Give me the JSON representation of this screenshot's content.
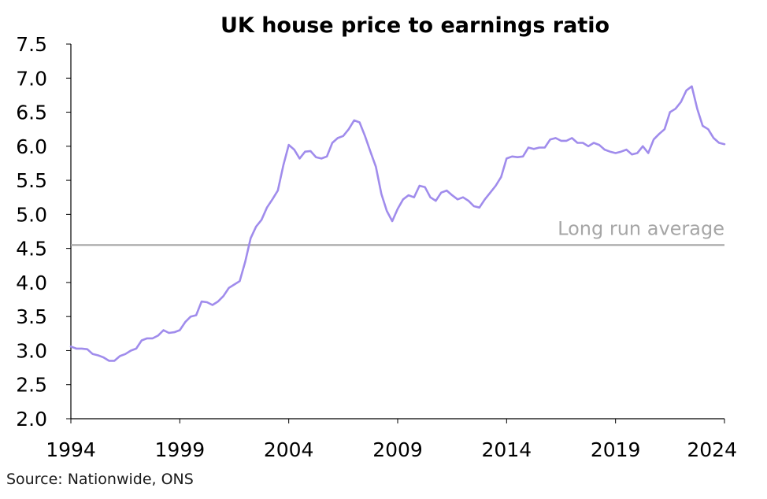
{
  "colors": {
    "title": "#0d1a4a",
    "line": "#a08cec",
    "average": "#a6a6a6",
    "axis": "#000000",
    "text": "#000000"
  },
  "chart_data": {
    "type": "line",
    "title": "UK house price to earnings ratio",
    "xlabel": "",
    "ylabel": "",
    "xlim": [
      1994,
      2024
    ],
    "ylim": [
      2.0,
      7.5
    ],
    "x_ticks": [
      1994,
      1999,
      2004,
      2009,
      2014,
      2019,
      2024
    ],
    "x_tick_labels": [
      "1994",
      "1999",
      "2004",
      "2009",
      "2014",
      "2019",
      "2024"
    ],
    "y_ticks": [
      2.0,
      2.5,
      3.0,
      3.5,
      4.0,
      4.5,
      5.0,
      5.5,
      6.0,
      6.5,
      7.0,
      7.5
    ],
    "y_tick_labels": [
      "2.0",
      "2.5",
      "3.0",
      "3.5",
      "4.0",
      "4.5",
      "5.0",
      "5.5",
      "6.0",
      "6.5",
      "7.0",
      "7.5"
    ],
    "grid": false,
    "legend": "none",
    "series": [
      {
        "x": [
          1994.0,
          1994.25,
          1994.5,
          1994.75,
          1995.0,
          1995.25,
          1995.5,
          1995.75,
          1996.0,
          1996.25,
          1996.5,
          1996.75,
          1997.0,
          1997.25,
          1997.5,
          1997.75,
          1998.0,
          1998.25,
          1998.5,
          1998.75,
          1999.0,
          1999.25,
          1999.5,
          1999.75,
          2000.0,
          2000.25,
          2000.5,
          2000.75,
          2001.0,
          2001.25,
          2001.5,
          2001.75,
          2002.0,
          2002.25,
          2002.5,
          2002.75,
          2003.0,
          2003.25,
          2003.5,
          2003.75,
          2004.0,
          2004.25,
          2004.5,
          2004.75,
          2005.0,
          2005.25,
          2005.5,
          2005.75,
          2006.0,
          2006.25,
          2006.5,
          2006.75,
          2007.0,
          2007.25,
          2007.5,
          2007.75,
          2008.0,
          2008.25,
          2008.5,
          2008.75,
          2009.0,
          2009.25,
          2009.5,
          2009.75,
          2010.0,
          2010.25,
          2010.5,
          2010.75,
          2011.0,
          2011.25,
          2011.5,
          2011.75,
          2012.0,
          2012.25,
          2012.5,
          2012.75,
          2013.0,
          2013.25,
          2013.5,
          2013.75,
          2014.0,
          2014.25,
          2014.5,
          2014.75,
          2015.0,
          2015.25,
          2015.5,
          2015.75,
          2016.0,
          2016.25,
          2016.5,
          2016.75,
          2017.0,
          2017.25,
          2017.5,
          2017.75,
          2018.0,
          2018.25,
          2018.5,
          2018.75,
          2019.0,
          2019.25,
          2019.5,
          2019.75,
          2020.0,
          2020.25,
          2020.5,
          2020.75,
          2021.0,
          2021.25,
          2021.5,
          2021.75,
          2022.0,
          2022.25,
          2022.5,
          2022.75,
          2023.0,
          2023.25,
          2023.5,
          2023.75,
          2024.0
        ],
        "values": [
          3.06,
          3.03,
          3.03,
          3.02,
          2.95,
          2.93,
          2.9,
          2.85,
          2.85,
          2.92,
          2.95,
          3.0,
          3.03,
          3.15,
          3.18,
          3.18,
          3.22,
          3.3,
          3.26,
          3.27,
          3.3,
          3.42,
          3.5,
          3.52,
          3.72,
          3.71,
          3.67,
          3.72,
          3.8,
          3.92,
          3.97,
          4.02,
          4.3,
          4.65,
          4.82,
          4.92,
          5.1,
          5.22,
          5.35,
          5.72,
          6.02,
          5.95,
          5.82,
          5.92,
          5.93,
          5.84,
          5.82,
          5.85,
          6.05,
          6.12,
          6.15,
          6.25,
          6.38,
          6.35,
          6.15,
          5.92,
          5.7,
          5.3,
          5.05,
          4.9,
          5.08,
          5.22,
          5.28,
          5.25,
          5.42,
          5.4,
          5.25,
          5.2,
          5.32,
          5.35,
          5.28,
          5.22,
          5.25,
          5.2,
          5.12,
          5.1,
          5.22,
          5.32,
          5.42,
          5.55,
          5.82,
          5.85,
          5.84,
          5.85,
          5.98,
          5.96,
          5.98,
          5.98,
          6.1,
          6.12,
          6.08,
          6.08,
          6.12,
          6.05,
          6.05,
          6.0,
          6.05,
          6.02,
          5.95,
          5.92,
          5.9,
          5.92,
          5.95,
          5.88,
          5.9,
          6.0,
          5.9,
          6.1,
          6.18,
          6.25,
          6.5,
          6.55,
          6.65,
          6.82,
          6.88,
          6.55,
          6.3,
          6.25,
          6.12,
          6.05,
          6.03
        ]
      }
    ],
    "reference_lines": [
      {
        "value": 4.55,
        "label": "Long run average"
      }
    ]
  },
  "source": "Source: Nationwide, ONS"
}
